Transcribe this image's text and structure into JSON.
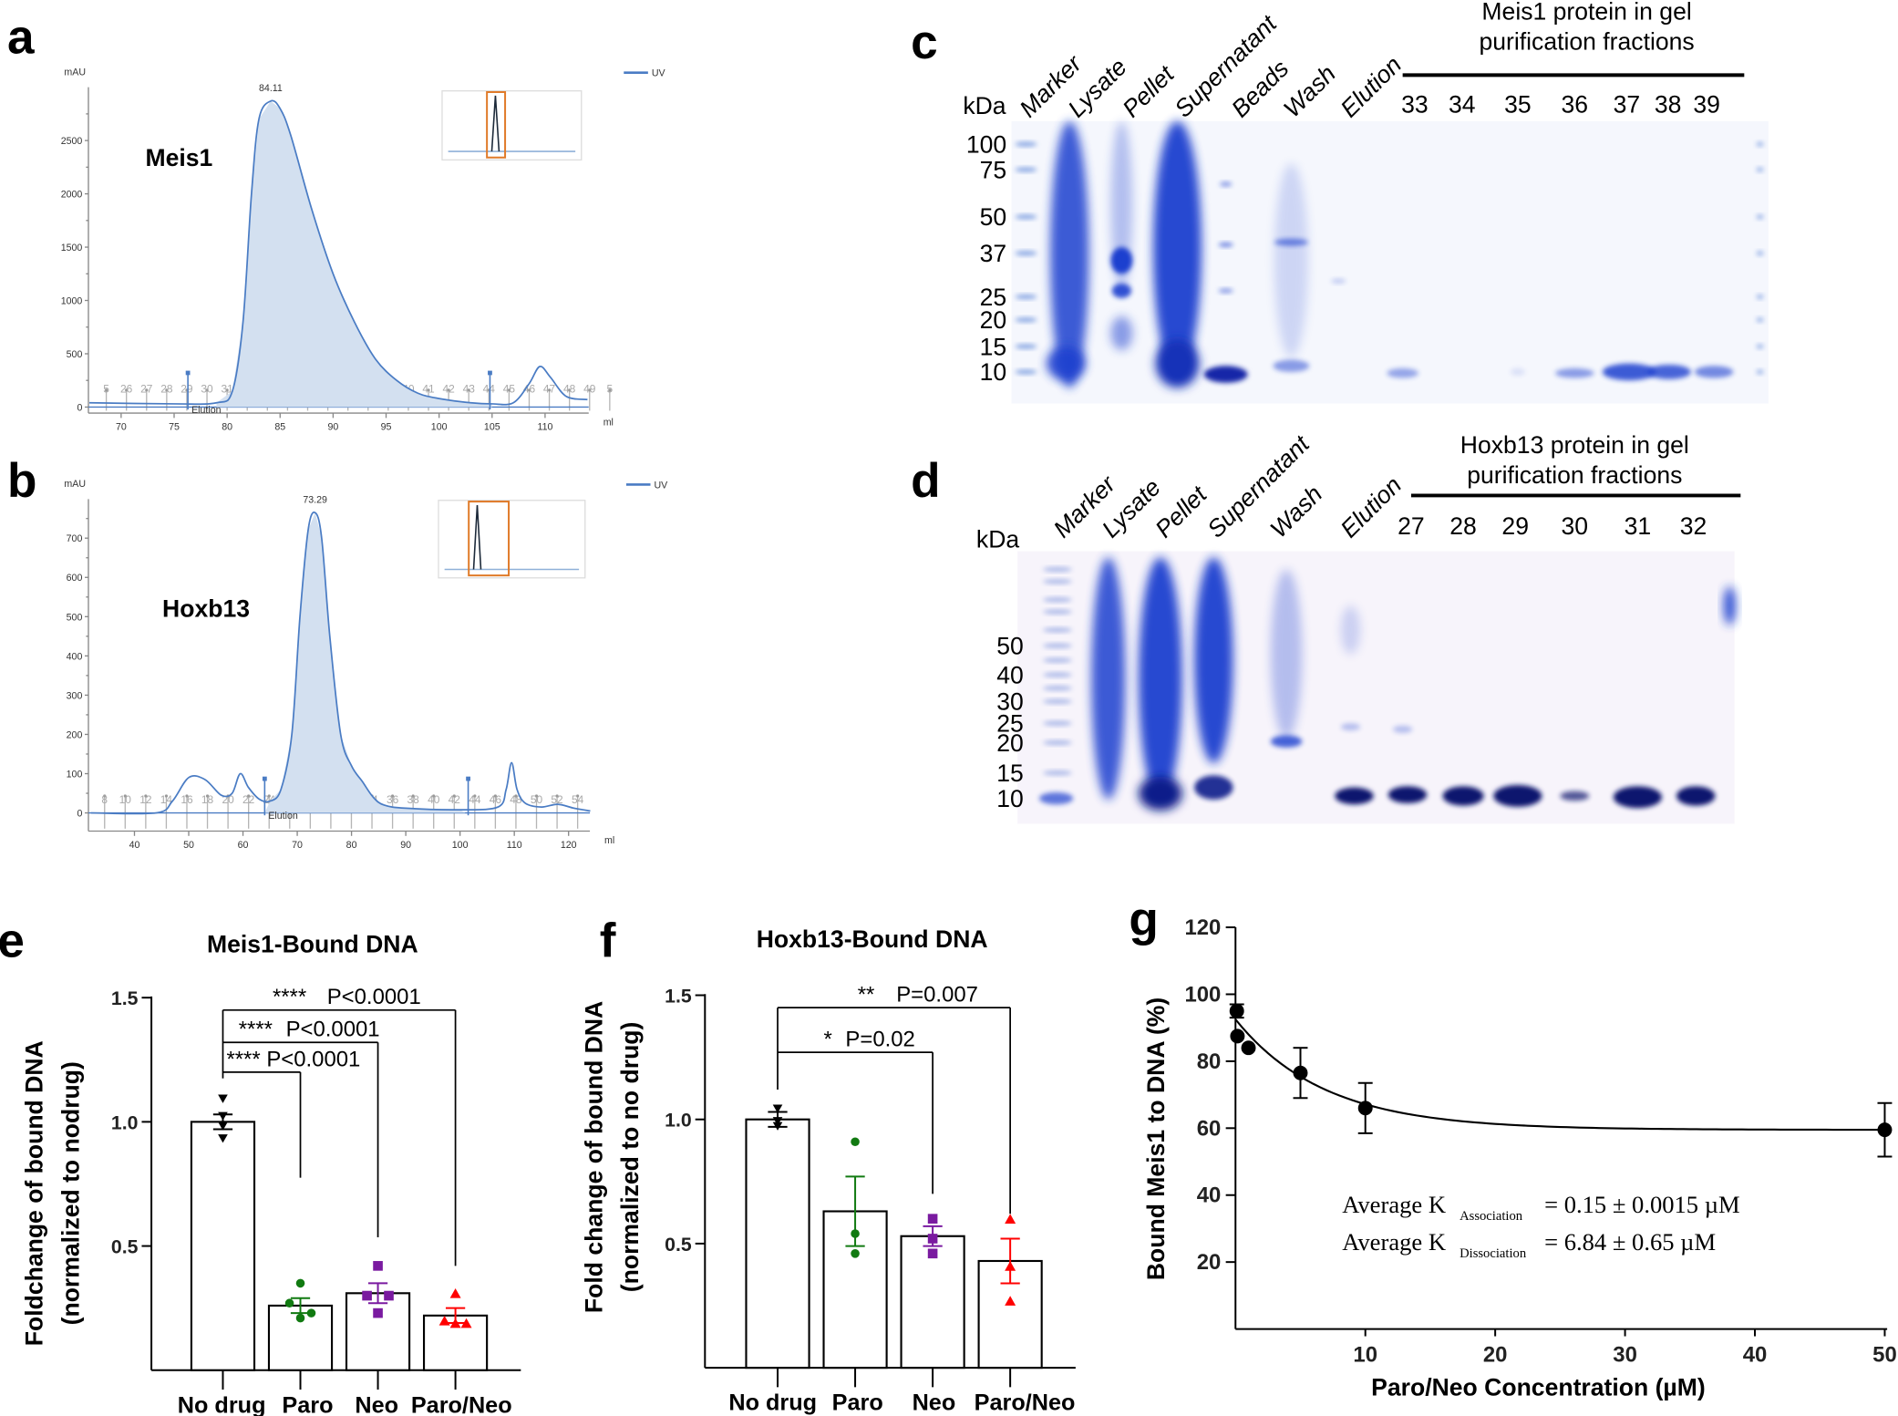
{
  "panel_labels": {
    "a": "a",
    "b": "b",
    "c": "c",
    "d": "d",
    "e": "e",
    "f": "f",
    "g": "g"
  },
  "colors": {
    "uv_line": "#4a7cc4",
    "uv_fill": "#d3e0f0",
    "inset_box": "#e07a28",
    "paro": "#117a11",
    "neo": "#7a1aa0",
    "paroneo": "#ff0000",
    "gel_stain": "#1a3fcf"
  },
  "chart_data": [
    {
      "id": "a",
      "type": "area",
      "title": "Meis1",
      "ylabel": "mAU",
      "xlabel": "ml",
      "legend": "UV",
      "legend_position": "top-right",
      "peak_label": "84.11",
      "elution_label": "Elution",
      "yticks": [
        0,
        500,
        1000,
        1500,
        2000,
        2500
      ],
      "xticks": [
        70,
        75,
        80,
        85,
        90,
        95,
        100,
        105,
        110
      ],
      "xlim": [
        66.9,
        114.1
      ],
      "ylim": [
        0,
        3000
      ],
      "fractions": [
        "5",
        "26",
        "27",
        "28",
        "29",
        "30",
        "31",
        "32",
        "33",
        "34",
        "35",
        "36",
        "37",
        "38",
        "39",
        "40",
        "41",
        "42",
        "43",
        "44",
        "45",
        "46",
        "47",
        "48",
        "49",
        "5"
      ],
      "elution_marks_ml": [
        76.3,
        104.8
      ],
      "points": [
        [
          67,
          40
        ],
        [
          75,
          30
        ],
        [
          79,
          40
        ],
        [
          80.5,
          150
        ],
        [
          81.5,
          800
        ],
        [
          82.3,
          2000
        ],
        [
          83,
          2700
        ],
        [
          84.11,
          2870
        ],
        [
          85,
          2800
        ],
        [
          86,
          2550
        ],
        [
          88,
          1850
        ],
        [
          90,
          1250
        ],
        [
          92,
          800
        ],
        [
          94,
          450
        ],
        [
          96,
          250
        ],
        [
          98,
          130
        ],
        [
          100,
          80
        ],
        [
          103,
          40
        ],
        [
          105,
          30
        ],
        [
          107,
          40
        ],
        [
          108.5,
          220
        ],
        [
          109.5,
          380
        ],
        [
          110.5,
          280
        ],
        [
          112,
          100
        ],
        [
          114,
          70
        ]
      ],
      "fill_range_ml": [
        79,
        105
      ]
    },
    {
      "id": "b",
      "type": "area",
      "title": "Hoxb13",
      "ylabel": "mAU",
      "xlabel": "ml",
      "legend": "UV",
      "legend_position": "top-right",
      "peak_label": "73.29",
      "elution_label": "Elution",
      "yticks": [
        0,
        100,
        200,
        300,
        400,
        500,
        600,
        700
      ],
      "xticks": [
        40,
        50,
        60,
        70,
        80,
        90,
        100,
        110,
        120
      ],
      "xlim": [
        31.5,
        123.9
      ],
      "ylim": [
        0,
        800
      ],
      "fractions": [
        "8",
        "10",
        "12",
        "14",
        "16",
        "18",
        "20",
        "22",
        "24",
        "26",
        "28",
        "30",
        "32",
        "34",
        "36",
        "38",
        "40",
        "42",
        "44",
        "46",
        "48",
        "50",
        "52",
        "54"
      ],
      "elution_marks_ml": [
        64,
        101.5
      ],
      "points": [
        [
          32,
          0
        ],
        [
          44,
          0
        ],
        [
          47,
          30
        ],
        [
          50,
          90
        ],
        [
          53,
          85
        ],
        [
          56,
          45
        ],
        [
          58,
          50
        ],
        [
          59.5,
          100
        ],
        [
          61,
          65
        ],
        [
          63,
          35
        ],
        [
          65,
          30
        ],
        [
          67,
          60
        ],
        [
          69,
          200
        ],
        [
          70.5,
          500
        ],
        [
          72,
          720
        ],
        [
          73.29,
          765
        ],
        [
          74.5,
          700
        ],
        [
          76,
          450
        ],
        [
          78,
          200
        ],
        [
          80,
          120
        ],
        [
          82,
          80
        ],
        [
          84,
          40
        ],
        [
          86,
          20
        ],
        [
          90,
          12
        ],
        [
          100,
          8
        ],
        [
          107,
          15
        ],
        [
          108.5,
          60
        ],
        [
          109.5,
          128
        ],
        [
          110.5,
          60
        ],
        [
          112,
          25
        ],
        [
          115,
          15
        ],
        [
          118,
          22
        ],
        [
          121,
          12
        ],
        [
          124,
          5
        ]
      ],
      "fill_range_ml": [
        64,
        101
      ]
    },
    {
      "id": "e",
      "type": "bar",
      "title": "Meis1-Bound DNA",
      "ylabel": [
        "Foldchange of bound DNA",
        "(normalized to nodrug)"
      ],
      "categories": [
        "No drug",
        "Paro",
        "Neo",
        "Paro/Neo"
      ],
      "values": [
        1.0,
        0.26,
        0.31,
        0.22
      ],
      "sem": [
        0.03,
        0.03,
        0.04,
        0.03
      ],
      "points": [
        [
          1.09,
          1.02,
          0.98,
          0.93
        ],
        [
          0.35,
          0.27,
          0.23,
          0.21
        ],
        [
          0.42,
          0.3,
          0.3,
          0.23
        ],
        [
          0.31,
          0.2,
          0.19,
          0.19
        ]
      ],
      "yticks": [
        "0.5",
        "1.0",
        "1.5"
      ],
      "ylim": [
        0,
        1.5
      ],
      "comparisons": [
        {
          "to": 1,
          "level": 1.2,
          "end": 0.775,
          "stars": "****",
          "label": "P<0.0001"
        },
        {
          "to": 2,
          "level": 1.32,
          "end": 0.535,
          "stars": "****",
          "label": "P<0.0001"
        },
        {
          "to": 3,
          "level": 1.45,
          "end": 0.42,
          "stars": "****",
          "label": "P<0.0001"
        }
      ]
    },
    {
      "id": "f",
      "type": "bar",
      "title": "Hoxb13-Bound DNA",
      "ylabel": [
        "Fold change of bound DNA",
        "(normalized to no drug)"
      ],
      "categories": [
        "No drug",
        "Paro",
        "Neo",
        "Paro/Neo"
      ],
      "values": [
        1.0,
        0.63,
        0.53,
        0.43
      ],
      "sem": [
        0.03,
        0.14,
        0.04,
        0.09
      ],
      "points": [
        [
          1.04,
          0.99,
          0.97
        ],
        [
          0.91,
          0.54,
          0.46
        ],
        [
          0.6,
          0.52,
          0.46
        ],
        [
          0.6,
          0.41,
          0.27
        ]
      ],
      "yticks": [
        "0.5",
        "1.0",
        "1.5"
      ],
      "ylim": [
        0,
        1.5
      ],
      "comparisons": [
        {
          "to": 2,
          "level": 1.27,
          "end": 0.7,
          "stars": "*",
          "label": "P=0.02"
        },
        {
          "to": 3,
          "level": 1.45,
          "end": 0.62,
          "stars": "**",
          "label": "P=0.007"
        }
      ]
    },
    {
      "id": "g",
      "type": "scatter",
      "xlabel": "Paro/Neo Concentration (µM)",
      "ylabel": "Bound  Meis1  to DNA (%)",
      "x": [
        0.1,
        0.15,
        1,
        5,
        10,
        50
      ],
      "y": [
        95,
        87.5,
        84,
        76.5,
        66,
        59.5
      ],
      "err": [
        2,
        0,
        0,
        7.5,
        7.5,
        8
      ],
      "xticks": [
        "10",
        "20",
        "30",
        "40",
        "50"
      ],
      "yticks": [
        "20",
        "40",
        "60",
        "80",
        "100",
        "120"
      ],
      "xlim": [
        0,
        50
      ],
      "ylim": [
        0,
        120
      ],
      "fit": {
        "plateau": 59.5,
        "span": 33,
        "k": 6.84
      },
      "annotations": [
        {
          "prefix": "Average K",
          "sub": "Association",
          "suffix": "= 0.15 ± 0.0015 µM"
        },
        {
          "prefix": "Average K",
          "sub": "Dissociation",
          "suffix": "= 6.84 ± 0.65 µM"
        }
      ]
    }
  ],
  "gel_c": {
    "kda_label": "kDa",
    "lanes": [
      "Marker",
      "Lysate",
      "Pellet",
      "Supernatant",
      "Beads",
      "Wash",
      "Elution"
    ],
    "fractions": [
      "33",
      "34",
      "35",
      "36",
      "37",
      "38",
      "39"
    ],
    "mw": [
      "100",
      "75",
      "50",
      "37",
      "25",
      "20",
      "15",
      "10"
    ],
    "title_lines": [
      "Meis1 protein in gel",
      "purification fractions"
    ]
  },
  "gel_d": {
    "kda_label": "kDa",
    "lanes": [
      "Marker",
      "Lysate",
      "Pellet",
      "Supernatant",
      "Wash",
      "Elution"
    ],
    "fractions": [
      "27",
      "28",
      "29",
      "30",
      "31",
      "32"
    ],
    "mw": [
      "50",
      "40",
      "30",
      "25",
      "20",
      "15",
      "10"
    ],
    "title_lines": [
      "Hoxb13 protein in gel",
      "purification fractions"
    ]
  }
}
